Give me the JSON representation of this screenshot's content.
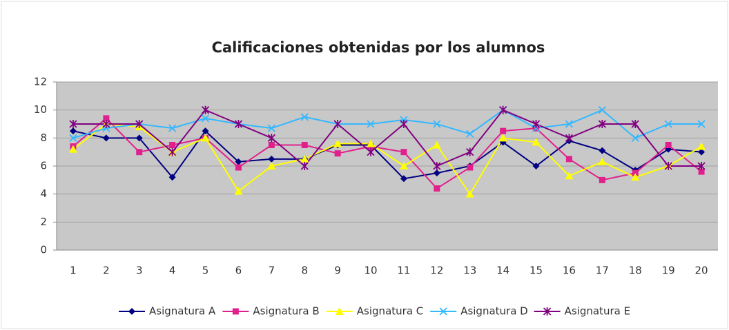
{
  "chart_data": {
    "type": "line",
    "title": "Calificaciones obtenidas por los alumnos",
    "categories": [
      1,
      2,
      3,
      4,
      5,
      6,
      7,
      8,
      9,
      10,
      11,
      12,
      13,
      14,
      15,
      16,
      17,
      18,
      19,
      20
    ],
    "series": [
      {
        "name": "Asignatura A",
        "color": "#000080",
        "marker": "diamond",
        "values": [
          8.5,
          8,
          8,
          5.2,
          8.5,
          6.3,
          6.5,
          6.5,
          7.5,
          7.5,
          5.1,
          5.5,
          6,
          7.7,
          6,
          7.8,
          7.1,
          5.7,
          7.2,
          7
        ]
      },
      {
        "name": "Asignatura B",
        "color": "#e0208c",
        "marker": "square",
        "values": [
          7.4,
          9.4,
          7,
          7.5,
          8,
          5.9,
          7.5,
          7.5,
          6.9,
          7.4,
          7,
          4.4,
          5.9,
          8.5,
          8.7,
          6.5,
          5,
          5.5,
          7.5,
          5.6
        ]
      },
      {
        "name": "Asignatura C",
        "color": "#ffff00",
        "marker": "triangle",
        "values": [
          7.2,
          9,
          8.8,
          7,
          8,
          4.2,
          6,
          6.5,
          7.6,
          7.6,
          6,
          7.5,
          4,
          8,
          7.7,
          5.3,
          6.3,
          5.2,
          6,
          7.4
        ]
      },
      {
        "name": "Asignatura D",
        "color": "#33b8ff",
        "marker": "x",
        "values": [
          8,
          8.7,
          9,
          8.7,
          9.4,
          9,
          8.7,
          9.5,
          9,
          9,
          9.3,
          9,
          8.3,
          10,
          8.7,
          9,
          10,
          8,
          9,
          9
        ]
      },
      {
        "name": "Asignatura E",
        "color": "#800080",
        "marker": "star",
        "values": [
          9,
          9,
          9,
          7,
          10,
          9,
          8,
          6,
          9,
          7,
          9,
          6,
          7,
          10,
          9,
          8,
          9,
          9,
          6,
          6
        ]
      }
    ],
    "ylim": [
      0,
      12
    ],
    "yticks": [
      0,
      2,
      4,
      6,
      8,
      10,
      12
    ],
    "grid": true,
    "legend": "bottom"
  }
}
